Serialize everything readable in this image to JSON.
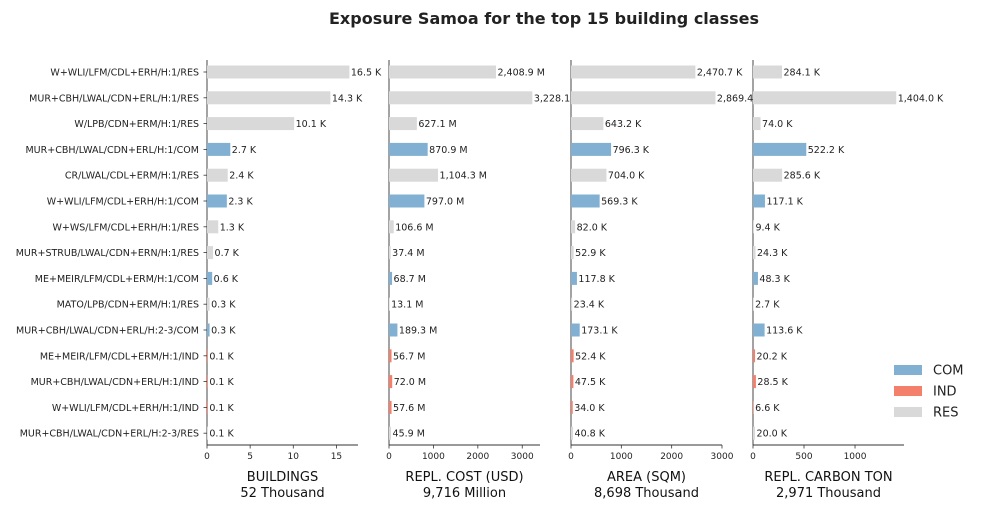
{
  "chart_data": {
    "type": "bar",
    "orientation": "horizontal",
    "title": "Exposure Samoa for the top 15 building classes",
    "categories": [
      "W+WLI/LFM/CDL+ERH/H:1/RES",
      "MUR+CBH/LWAL/CDN+ERL/H:1/RES",
      "W/LPB/CDN+ERM/H:1/RES",
      "MUR+CBH/LWAL/CDN+ERL/H:1/COM",
      "CR/LWAL/CDL+ERM/H:1/RES",
      "W+WLI/LFM/CDL+ERH/H:1/COM",
      "W+WS/LFM/CDL+ERH/H:1/RES",
      "MUR+STRUB/LWAL/CDN+ERN/H:1/RES",
      "ME+MEIR/LFM/CDL+ERM/H:1/COM",
      "MATO/LPB/CDN+ERM/H:1/RES",
      "MUR+CBH/LWAL/CDN+ERL/H:2-3/COM",
      "ME+MEIR/LFM/CDL+ERM/H:1/IND",
      "MUR+CBH/LWAL/CDN+ERL/H:1/IND",
      "W+WLI/LFM/CDL+ERH/H:1/IND",
      "MUR+CBH/LWAL/CDN+ERL/H:2-3/RES"
    ],
    "occupancy": [
      "RES",
      "RES",
      "RES",
      "COM",
      "RES",
      "COM",
      "RES",
      "RES",
      "COM",
      "RES",
      "COM",
      "IND",
      "IND",
      "IND",
      "RES"
    ],
    "colors": {
      "COM": "#82b0d2",
      "IND": "#f47f6b",
      "RES": "#d9d9d9"
    },
    "legend": {
      "entries": [
        "COM",
        "IND",
        "RES"
      ],
      "placement": "right"
    },
    "panels": [
      {
        "xlabel": "BUILDINGS",
        "total_label": "52 Thousand",
        "xlim": [
          0,
          17.5
        ],
        "xticks": [
          0,
          5,
          10,
          15
        ],
        "values": [
          16.5,
          14.3,
          10.1,
          2.7,
          2.4,
          2.3,
          1.3,
          0.7,
          0.6,
          0.3,
          0.3,
          0.1,
          0.1,
          0.1,
          0.1
        ],
        "value_labels": [
          "16.5 K",
          "14.3 K",
          "10.1 K",
          "2.7 K",
          "2.4 K",
          "2.3 K",
          "1.3 K",
          "0.7 K",
          "0.6 K",
          "0.3 K",
          "0.3 K",
          "0.1 K",
          "0.1 K",
          "0.1 K",
          "0.1 K"
        ]
      },
      {
        "xlabel": "REPL. COST (USD)",
        "total_label": "9,716 Million",
        "xlim": [
          0,
          3400
        ],
        "xticks": [
          0,
          1000,
          2000,
          3000
        ],
        "values": [
          2408.9,
          3228.1,
          627.1,
          870.9,
          1104.3,
          797.0,
          106.6,
          37.4,
          68.7,
          13.1,
          189.3,
          56.7,
          72.0,
          57.6,
          45.9
        ],
        "value_labels": [
          "2,408.9 M",
          "3,228.1",
          "627.1 M",
          "870.9 M",
          "1,104.3 M",
          "797.0 M",
          "106.6 M",
          "37.4 M",
          "68.7 M",
          "13.1 M",
          "189.3 M",
          "56.7 M",
          "72.0 M",
          "57.6 M",
          "45.9 M"
        ]
      },
      {
        "xlabel": "AREA (SQM)",
        "total_label": "8,698 Thousand",
        "xlim": [
          0,
          3000
        ],
        "xticks": [
          0,
          1000,
          2000,
          3000
        ],
        "values": [
          2470.7,
          2869.4,
          643.2,
          796.3,
          704.0,
          569.3,
          82.0,
          52.9,
          117.8,
          23.4,
          173.1,
          52.4,
          47.5,
          34.0,
          40.8
        ],
        "value_labels": [
          "2,470.7 K",
          "2,869.4",
          "643.2 K",
          "796.3 K",
          "704.0 K",
          "569.3 K",
          "82.0 K",
          "52.9 K",
          "117.8 K",
          "23.4 K",
          "173.1 K",
          "52.4 K",
          "47.5 K",
          "34.0 K",
          "40.8 K"
        ]
      },
      {
        "xlabel": "REPL. CARBON TON",
        "total_label": "2,971 Thousand",
        "xlim": [
          0,
          1480
        ],
        "xticks": [
          0,
          500,
          1000
        ],
        "values": [
          284.1,
          1404.0,
          74.0,
          522.2,
          285.6,
          117.1,
          9.4,
          24.3,
          48.3,
          2.7,
          113.6,
          20.2,
          28.5,
          6.6,
          20.0
        ],
        "value_labels": [
          "284.1 K",
          "1,404.0 K",
          "74.0 K",
          "522.2 K",
          "285.6 K",
          "117.1 K",
          "9.4 K",
          "24.3 K",
          "48.3 K",
          "2.7 K",
          "113.6 K",
          "20.2 K",
          "28.5 K",
          "6.6 K",
          "20.0 K"
        ]
      }
    ]
  }
}
